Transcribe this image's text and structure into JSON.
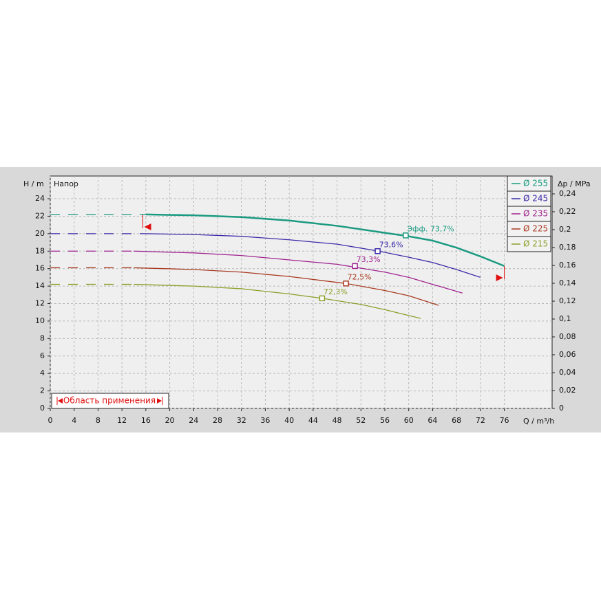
{
  "chart_data": {
    "type": "line",
    "y_label": "H / m",
    "y2_label": "Δp / MPa",
    "x_label": "Q / m³/h",
    "annotation": "Напор",
    "range_label": "Область применения",
    "range": [
      15.5,
      76
    ],
    "legend": "upper right",
    "grid": true,
    "xlim": [
      0,
      84
    ],
    "xticks": [
      0,
      4,
      8,
      12,
      16,
      20,
      24,
      28,
      32,
      36,
      40,
      44,
      48,
      52,
      56,
      60,
      64,
      68,
      72,
      76
    ],
    "ylim": [
      0,
      26.6
    ],
    "yticks": [
      0,
      2,
      4,
      6,
      8,
      10,
      12,
      14,
      16,
      18,
      20,
      22,
      24
    ],
    "y2lim": [
      0,
      0.26
    ],
    "y2ticks": [
      0,
      {
        "value": 0.02,
        "label": "0,02"
      },
      {
        "value": 0.04,
        "label": "0,04"
      },
      {
        "value": 0.06,
        "label": "0,06"
      },
      {
        "value": 0.08,
        "label": "0,08"
      },
      {
        "value": 0.1,
        "label": "0,1"
      },
      {
        "value": 0.12,
        "label": "0,12"
      },
      {
        "value": 0.14,
        "label": "0,14"
      },
      {
        "value": 0.16,
        "label": "0,16"
      },
      {
        "value": 0.18,
        "label": "0,18"
      },
      {
        "value": 0.2,
        "label": "0,2"
      },
      {
        "value": 0.22,
        "label": "0,22"
      },
      {
        "value": 0.24,
        "label": "0,24"
      }
    ],
    "series": [
      {
        "name": "Ø 255",
        "color": "#1a9a80",
        "x": [
          0,
          16,
          24,
          32,
          40,
          48,
          56,
          60,
          64,
          68,
          72,
          76
        ],
        "values": [
          22.2,
          22.2,
          22.1,
          21.9,
          21.5,
          20.9,
          20.1,
          19.7,
          19.2,
          18.4,
          17.4,
          16.3
        ],
        "eff_x": 59.5,
        "eff_y": 19.8,
        "eff_label": "Эфф.  73,7%"
      },
      {
        "name": "Ø 245",
        "color": "#3a2aa8",
        "x": [
          0,
          16,
          24,
          32,
          40,
          48,
          55,
          60,
          64,
          68,
          72
        ],
        "values": [
          20.0,
          20.0,
          19.9,
          19.7,
          19.3,
          18.8,
          18.0,
          17.3,
          16.7,
          15.9,
          15.0
        ],
        "eff_x": 54.8,
        "eff_y": 18.0,
        "eff_label": "73,6%"
      },
      {
        "name": "Ø 235",
        "color": "#a02590",
        "x": [
          0,
          14,
          24,
          32,
          40,
          48,
          56,
          60,
          64,
          69
        ],
        "values": [
          18.0,
          18.0,
          17.8,
          17.5,
          17.0,
          16.5,
          15.6,
          15.0,
          14.2,
          13.2
        ],
        "eff_x": 51,
        "eff_y": 16.3,
        "eff_label": "73,3%"
      },
      {
        "name": "Ø 225",
        "color": "#a83a20",
        "x": [
          0,
          14,
          24,
          32,
          40,
          49.5,
          56,
          60,
          65
        ],
        "values": [
          16.1,
          16.1,
          15.9,
          15.6,
          15.1,
          14.3,
          13.5,
          12.9,
          11.8
        ],
        "eff_x": 49.5,
        "eff_y": 14.3,
        "eff_label": "72,5%"
      },
      {
        "name": "Ø 215",
        "color": "#8aa02a",
        "x": [
          0,
          14,
          24,
          32,
          40,
          45.5,
          52,
          56,
          62
        ],
        "values": [
          14.2,
          14.2,
          14.0,
          13.7,
          13.1,
          12.6,
          11.9,
          11.3,
          10.3
        ],
        "eff_x": 45.5,
        "eff_y": 12.6,
        "eff_label": "72,3%"
      }
    ]
  }
}
